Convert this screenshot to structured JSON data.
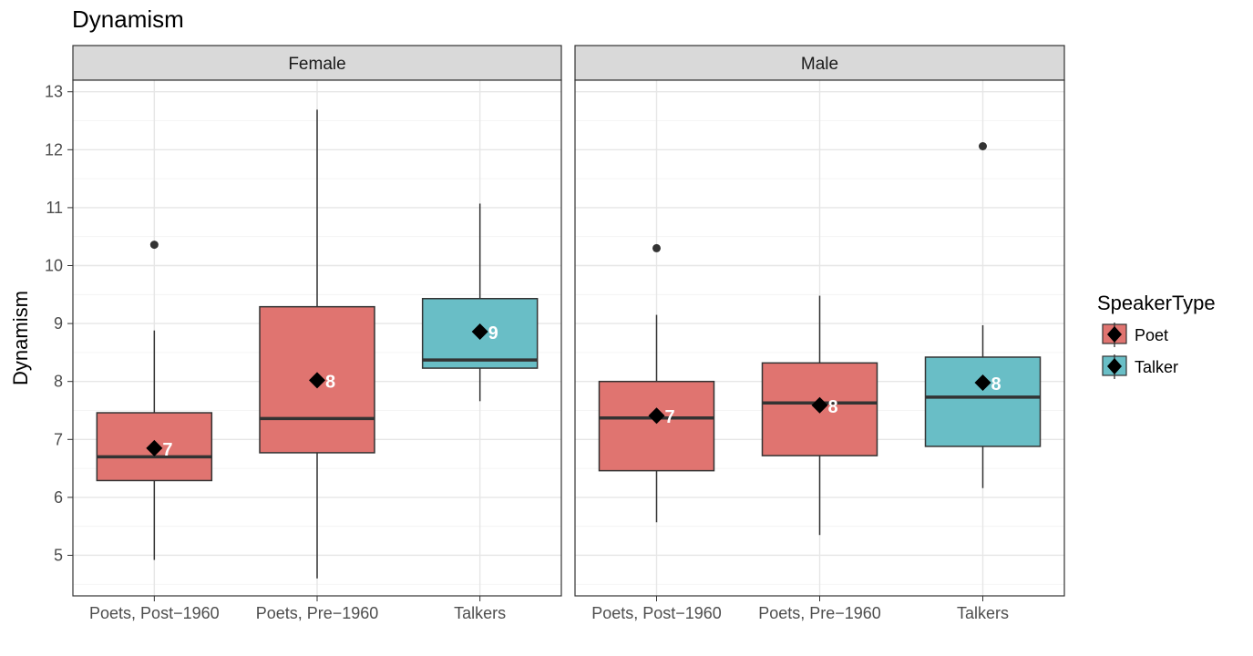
{
  "chart_data": {
    "type": "boxplot",
    "title": "Dynamism",
    "ylabel": "Dynamism",
    "xlabel": "",
    "ylim": [
      4.3,
      13.2
    ],
    "yticks": [
      5,
      6,
      7,
      8,
      9,
      10,
      11,
      12,
      13
    ],
    "categories": [
      "Poets, Post−1960",
      "Poets, Pre−1960",
      "Talkers"
    ],
    "grid": true,
    "legend": {
      "title": "SpeakerType",
      "position": "right",
      "entries": [
        {
          "label": "Poet",
          "color": "#e07470"
        },
        {
          "label": "Talker",
          "color": "#69bec6"
        }
      ]
    },
    "colors": {
      "Poet": "#e07470",
      "Talker": "#69bec6"
    },
    "panels": [
      {
        "label": "Female",
        "boxes": [
          {
            "category": "Poets, Post−1960",
            "speaker_type": "Poet",
            "whisker_low": 4.92,
            "q1": 6.29,
            "median": 6.7,
            "q3": 7.46,
            "whisker_high": 8.88,
            "mean": 6.85,
            "mean_label": "7",
            "outliers": [
              10.36
            ]
          },
          {
            "category": "Poets, Pre−1960",
            "speaker_type": "Poet",
            "whisker_low": 4.6,
            "q1": 6.77,
            "median": 7.36,
            "q3": 9.29,
            "whisker_high": 12.69,
            "mean": 8.02,
            "mean_label": "8",
            "outliers": []
          },
          {
            "category": "Talkers",
            "speaker_type": "Talker",
            "whisker_low": 7.66,
            "q1": 8.23,
            "median": 8.37,
            "q3": 9.43,
            "whisker_high": 11.07,
            "mean": 8.86,
            "mean_label": "9",
            "outliers": []
          }
        ]
      },
      {
        "label": "Male",
        "boxes": [
          {
            "category": "Poets, Post−1960",
            "speaker_type": "Poet",
            "whisker_low": 5.57,
            "q1": 6.46,
            "median": 7.37,
            "q3": 8.0,
            "whisker_high": 9.15,
            "mean": 7.41,
            "mean_label": "7",
            "outliers": [
              10.3
            ]
          },
          {
            "category": "Poets, Pre−1960",
            "speaker_type": "Poet",
            "whisker_low": 5.35,
            "q1": 6.72,
            "median": 7.63,
            "q3": 8.32,
            "whisker_high": 9.48,
            "mean": 7.59,
            "mean_label": "8",
            "outliers": []
          },
          {
            "category": "Talkers",
            "speaker_type": "Talker",
            "whisker_low": 6.16,
            "q1": 6.88,
            "median": 7.73,
            "q3": 8.42,
            "whisker_high": 8.97,
            "mean": 7.98,
            "mean_label": "8",
            "outliers": [
              12.06
            ]
          }
        ]
      }
    ]
  }
}
